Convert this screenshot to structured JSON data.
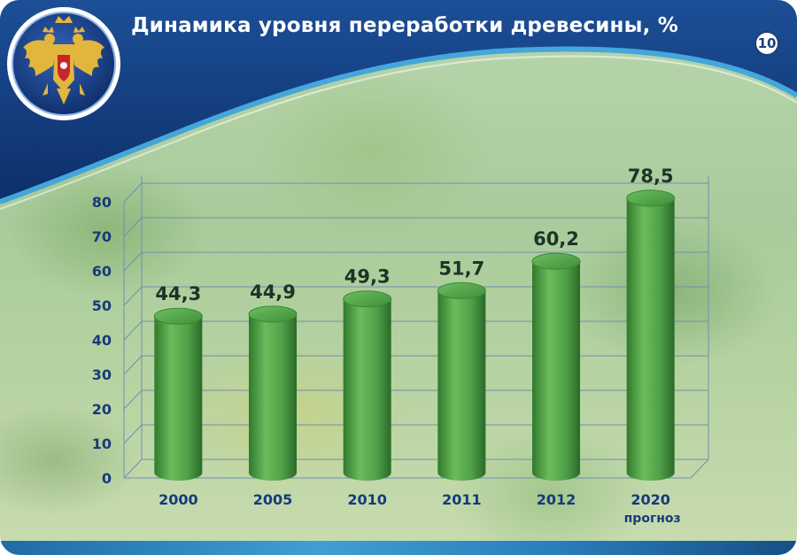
{
  "header": {
    "title": "Динамика уровня переработки древесины, %",
    "page_number": "10"
  },
  "colors": {
    "header_blue": "#123a7c",
    "accent_cyan": "#45a6dc",
    "bar_green": "#4fa048",
    "bar_green_dark": "#2f7a2c",
    "axis_text": "#173a7a",
    "value_text": "#1e3327"
  },
  "icons": {
    "emblem": "russian-coat-of-arms-icon"
  },
  "chart_data": {
    "type": "bar",
    "title": "Динамика уровня переработки древесины, %",
    "categories": [
      "2000",
      "2005",
      "2010",
      "2011",
      "2012",
      "2020"
    ],
    "category_sublabels": [
      "",
      "",
      "",
      "",
      "",
      "прогноз"
    ],
    "values": [
      44.3,
      44.9,
      49.3,
      51.7,
      60.2,
      78.5
    ],
    "value_labels": [
      "44,3",
      "44,9",
      "49,3",
      "51,7",
      "60,2",
      "78,5"
    ],
    "yticks": [
      "0",
      "10",
      "20",
      "30",
      "40",
      "50",
      "60",
      "70",
      "80"
    ],
    "ylim": [
      0,
      80
    ],
    "grid": true,
    "legend": "none",
    "xlabel": "",
    "ylabel": ""
  }
}
